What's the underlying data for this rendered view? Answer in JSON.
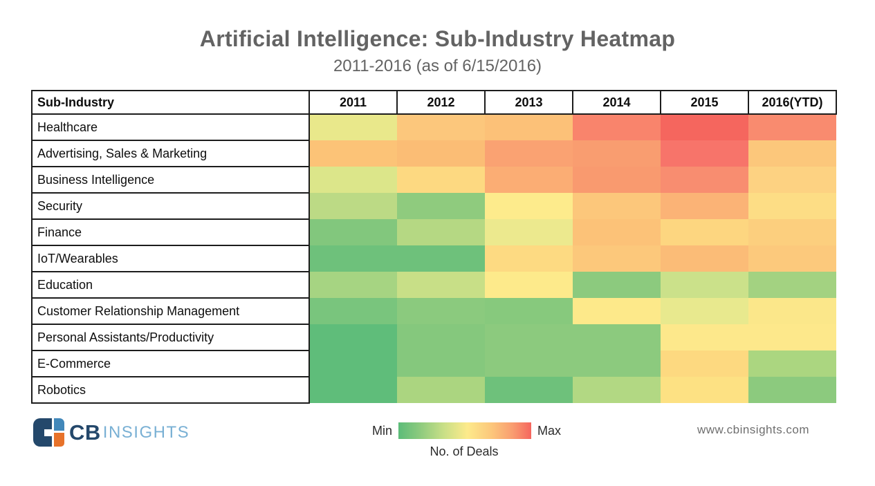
{
  "header": {
    "title": "Artificial Intelligence: Sub-Industry Heatmap",
    "subtitle": "2011-2016 (as of 6/15/2016)"
  },
  "chart_data": {
    "type": "heatmap",
    "title": "Artificial Intelligence: Sub-Industry Heatmap",
    "subtitle": "2011-2016 (as of 6/15/2016)",
    "corner_label": "Sub-Industry",
    "columns": [
      "2011",
      "2012",
      "2013",
      "2014",
      "2015",
      "2016(YTD)"
    ],
    "value_metric": "No. of Deals",
    "scale": {
      "min_label": "Min",
      "max_label": "Max",
      "min_color": "#5cbc79",
      "mid_color": "#fdea8b",
      "max_color": "#f5665e"
    },
    "rows": [
      {
        "label": "Healthcare",
        "colors": [
          "#e9e88b",
          "#fcc77c",
          "#fcc178",
          "#f9846c",
          "#f5665e",
          "#f98b6f"
        ],
        "relative_intensity": [
          0.4,
          0.67,
          0.7,
          0.9,
          1.0,
          0.88
        ]
      },
      {
        "label": "Advertising, Sales & Marketing",
        "colors": [
          "#fcc377",
          "#fbbd75",
          "#faa272",
          "#f99d70",
          "#f7746a",
          "#fcc77b"
        ],
        "relative_intensity": [
          0.68,
          0.72,
          0.8,
          0.82,
          0.95,
          0.67
        ]
      },
      {
        "label": "Business Intelligence",
        "colors": [
          "#dce68a",
          "#fdd981",
          "#fbad74",
          "#f99a6f",
          "#f88d70",
          "#fdd282"
        ],
        "relative_intensity": [
          0.35,
          0.58,
          0.75,
          0.83,
          0.87,
          0.6
        ]
      },
      {
        "label": "Security",
        "colors": [
          "#bcda85",
          "#8fcb7e",
          "#fdeb8c",
          "#fcc77b",
          "#fbb376",
          "#fddd85"
        ],
        "relative_intensity": [
          0.25,
          0.13,
          0.48,
          0.67,
          0.73,
          0.55
        ]
      },
      {
        "label": "Finance",
        "colors": [
          "#82c77d",
          "#b5d883",
          "#ece98e",
          "#fcc278",
          "#fdd680",
          "#fccf7e"
        ],
        "relative_intensity": [
          0.1,
          0.22,
          0.42,
          0.68,
          0.58,
          0.63
        ]
      },
      {
        "label": "IoT/Wearables",
        "colors": [
          "#6ec17b",
          "#6ec17b",
          "#fdda82",
          "#fcc87b",
          "#fbbc77",
          "#fcc97c"
        ],
        "relative_intensity": [
          0.05,
          0.05,
          0.57,
          0.66,
          0.72,
          0.66
        ]
      },
      {
        "label": "Education",
        "colors": [
          "#a6d482",
          "#c8df87",
          "#fdea8b",
          "#8cca7e",
          "#cbe18a",
          "#a3d281"
        ],
        "relative_intensity": [
          0.17,
          0.27,
          0.49,
          0.12,
          0.3,
          0.18
        ]
      },
      {
        "label": "Customer Relationship Management",
        "colors": [
          "#79c57d",
          "#8bca7e",
          "#87c97d",
          "#fde98a",
          "#e8e98e",
          "#fbe78a"
        ],
        "relative_intensity": [
          0.08,
          0.12,
          0.11,
          0.5,
          0.41,
          0.48
        ]
      },
      {
        "label": "Personal Assistants/Productivity",
        "colors": [
          "#5fbd7a",
          "#85c87d",
          "#8cca7e",
          "#8cca7e",
          "#fde88b",
          "#fde88b"
        ],
        "relative_intensity": [
          0.0,
          0.1,
          0.12,
          0.12,
          0.5,
          0.5
        ]
      },
      {
        "label": "E-Commerce",
        "colors": [
          "#5fbd7a",
          "#85c87d",
          "#8cca7e",
          "#8cca7e",
          "#fdd980",
          "#abd680"
        ],
        "relative_intensity": [
          0.0,
          0.1,
          0.12,
          0.12,
          0.58,
          0.2
        ]
      },
      {
        "label": "Robotics",
        "colors": [
          "#5fbd7a",
          "#abd580",
          "#6ec17b",
          "#b2d883",
          "#fde183",
          "#8cca7e"
        ],
        "relative_intensity": [
          0.0,
          0.2,
          0.05,
          0.23,
          0.53,
          0.12
        ]
      }
    ],
    "legend_position": "bottom-center",
    "grid": false
  },
  "footer": {
    "logo": {
      "text_primary": "CB",
      "text_secondary": "INSIGHTS",
      "navy": "#24486b",
      "blue": "#4288ba",
      "orange": "#e7722a",
      "light_blue": "#79b0d4"
    },
    "legend": {
      "min_label": "Min",
      "max_label": "Max",
      "caption": "No. of Deals"
    },
    "website": "www.cbinsights.com"
  }
}
